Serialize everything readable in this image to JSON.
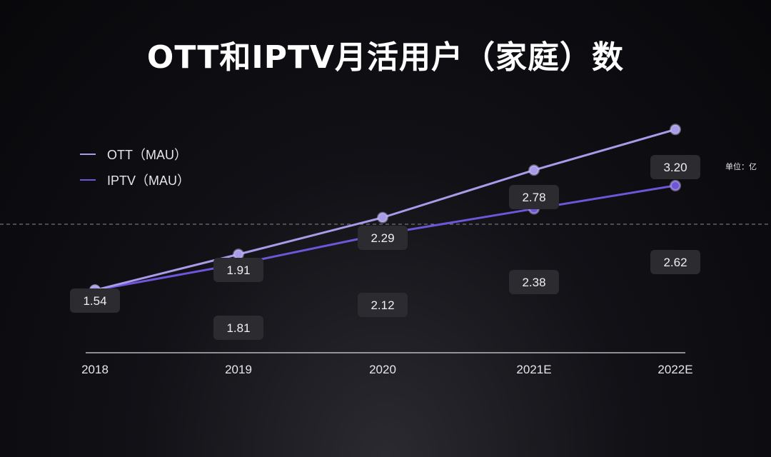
{
  "title": "OTT和IPTV月活用户（家庭）数",
  "unit_label": "单位：亿",
  "colors": {
    "ott": "#a99be8",
    "iptv": "#6f55d8",
    "label_bg": "#2b2b30",
    "axis": "#d8d8dc"
  },
  "chart_data": {
    "type": "line",
    "categories": [
      "2018",
      "2019",
      "2020",
      "2021E",
      "2022E"
    ],
    "series": [
      {
        "name": "OTT（MAU）",
        "values": [
          1.54,
          1.91,
          2.29,
          2.78,
          3.2
        ]
      },
      {
        "name": "IPTV（MAU）",
        "values": [
          1.54,
          1.81,
          2.12,
          2.38,
          2.62
        ]
      }
    ],
    "data_labels": [
      "1.54",
      "1.91",
      "2.29",
      "2.78",
      "3.20",
      "1.81",
      "2.12",
      "2.38",
      "2.62"
    ],
    "ylim": [
      0.9,
      3.8
    ],
    "legend_position": "top-left",
    "grid": false
  }
}
